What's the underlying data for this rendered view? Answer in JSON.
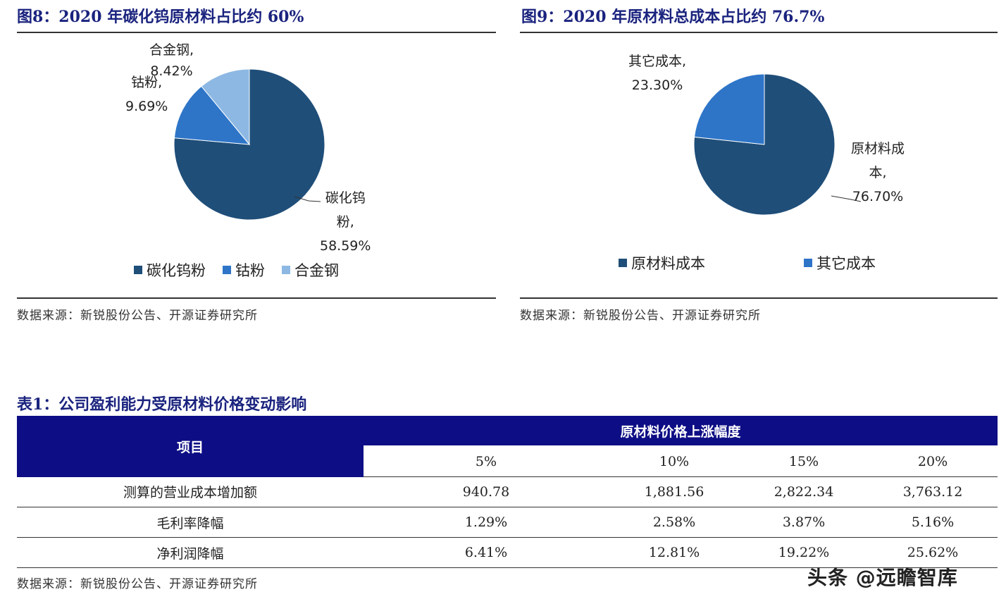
{
  "fig8": {
    "title": "图8：2020 年碳化钨原材料占比约 60%",
    "labels": {
      "alloy": [
        "合金钢,",
        "8.42%"
      ],
      "cobalt": [
        "钴粉,",
        "9.69%"
      ],
      "wc": [
        "碳化钨",
        "粉,",
        "58.59%"
      ]
    },
    "legend": [
      "碳化钨粉",
      "钴粉",
      "合金钢"
    ],
    "source": "数据来源：新锐股份公告、开源证券研究所"
  },
  "fig9": {
    "title": "图9：2020 年原材料总成本占比约 76.7%",
    "labels": {
      "other": [
        "其它成本,",
        "23.30%"
      ],
      "raw": [
        "原材料成",
        "本,",
        "76.70%"
      ]
    },
    "legend": [
      "原材料成本",
      "其它成本"
    ],
    "source": "数据来源：新锐股份公告、开源证券研究所"
  },
  "chart_data": [
    {
      "type": "pie",
      "title": "图8：2020 年碳化钨原材料占比约 60%",
      "categories": [
        "碳化钨粉",
        "钴粉",
        "合金钢"
      ],
      "values": [
        58.59,
        9.69,
        8.42
      ],
      "colors": [
        "#1f4e79",
        "#2e75c8",
        "#8db8e3"
      ],
      "legend_position": "bottom"
    },
    {
      "type": "pie",
      "title": "图9：2020 年原材料总成本占比约 76.7%",
      "categories": [
        "原材料成本",
        "其它成本"
      ],
      "values": [
        76.7,
        23.3
      ],
      "colors": [
        "#1f4e79",
        "#2e75c8"
      ],
      "legend_position": "bottom"
    }
  ],
  "table1": {
    "title": "表1：公司盈利能力受原材料价格变动影响",
    "item_header": "项目",
    "group_header": "原材料价格上涨幅度",
    "columns": [
      "5%",
      "10%",
      "15%",
      "20%"
    ],
    "rows": [
      {
        "label": "测算的营业成本增加额",
        "values": [
          "940.78",
          "1,881.56",
          "2,822.34",
          "3,763.12"
        ]
      },
      {
        "label": "毛利率降幅",
        "values": [
          "1.29%",
          "2.58%",
          "3.87%",
          "5.16%"
        ]
      },
      {
        "label": "净利润降幅",
        "values": [
          "6.41%",
          "12.81%",
          "19.22%",
          "25.62%"
        ]
      }
    ],
    "source": "数据来源：新锐股份公告、开源证券研究所"
  },
  "watermark": "头条 @远瞻智库",
  "colors": {
    "title": "#1a237e",
    "header_bg": "#0d0d85"
  }
}
